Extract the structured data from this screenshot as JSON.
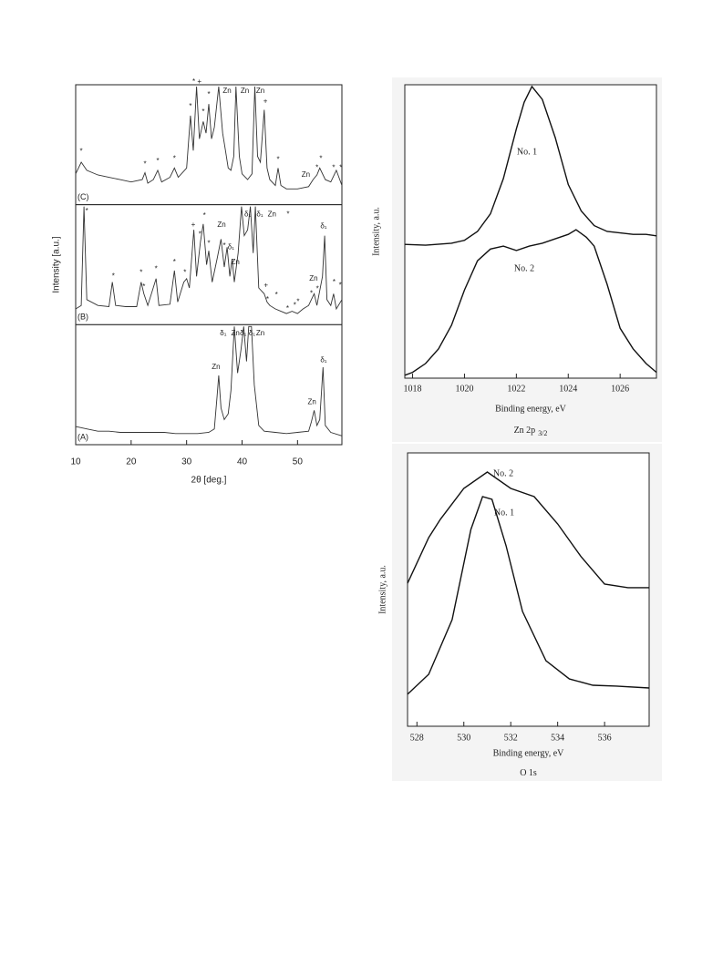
{
  "chart_data": [
    {
      "type": "stacked-line",
      "xlabel": "2θ [deg.]",
      "ylabel": "Intensity [a.u.]",
      "xlim": [
        10,
        58
      ],
      "xticks": [
        10,
        20,
        30,
        40,
        50
      ],
      "color": "#333333",
      "panels": [
        {
          "label": "(C)",
          "ylim": [
            0,
            100
          ],
          "x": [
            10,
            11,
            12,
            14,
            16,
            18,
            20,
            22,
            22.5,
            23,
            24,
            24.8,
            25.5,
            27,
            27.8,
            28.5,
            30,
            30.7,
            31.2,
            31.8,
            32.3,
            33,
            33.5,
            34,
            34.5,
            35,
            35.8,
            36.5,
            37,
            37.5,
            38,
            38.5,
            38.9,
            39.5,
            40,
            41,
            41.8,
            42.3,
            42.8,
            43.3,
            44,
            44.5,
            45,
            46,
            46.5,
            47,
            48,
            50,
            52,
            52.8,
            53.5,
            54,
            55,
            56,
            57,
            58
          ],
          "values": [
            25,
            35,
            28,
            24,
            22,
            20,
            18,
            20,
            26,
            17,
            20,
            28,
            18,
            22,
            30,
            22,
            30,
            75,
            45,
            100,
            55,
            70,
            60,
            85,
            55,
            65,
            100,
            60,
            45,
            30,
            28,
            40,
            100,
            40,
            25,
            20,
            25,
            100,
            40,
            35,
            80,
            30,
            20,
            15,
            30,
            15,
            12,
            12,
            14,
            20,
            24,
            30,
            20,
            18,
            28,
            15
          ],
          "annotations": [
            {
              "text": "*",
              "x": 11,
              "y": 44
            },
            {
              "text": "*",
              "x": 22.5,
              "y": 33
            },
            {
              "text": "*",
              "x": 24.8,
              "y": 36
            },
            {
              "text": "*",
              "x": 27.8,
              "y": 38
            },
            {
              "text": "*",
              "x": 30.7,
              "y": 83
            },
            {
              "text": "*",
              "x": 31.3,
              "y": 104
            },
            {
              "text": "+",
              "x": 32.3,
              "y": 104
            },
            {
              "text": "*",
              "x": 33,
              "y": 78
            },
            {
              "text": "*",
              "x": 34,
              "y": 93
            },
            {
              "text": "Zn",
              "x": 37.3,
              "y": 96
            },
            {
              "text": "Zn",
              "x": 40.5,
              "y": 96
            },
            {
              "text": "Zn",
              "x": 43.3,
              "y": 96
            },
            {
              "text": "+",
              "x": 44.2,
              "y": 87
            },
            {
              "text": "*",
              "x": 46.5,
              "y": 37
            },
            {
              "text": "Zn",
              "x": 51.5,
              "y": 24
            },
            {
              "text": "*",
              "x": 53.5,
              "y": 30
            },
            {
              "text": "*",
              "x": 54.2,
              "y": 38
            },
            {
              "text": "*",
              "x": 56.5,
              "y": 30
            },
            {
              "text": "*",
              "x": 57.8,
              "y": 30
            }
          ]
        },
        {
          "label": "(B)",
          "ylim": [
            0,
            100
          ],
          "x": [
            10,
            11,
            11.5,
            12,
            14,
            16,
            16.6,
            17.2,
            19,
            21,
            21.8,
            22.3,
            23,
            24.5,
            25,
            27,
            27.8,
            28.4,
            29.5,
            30,
            30.5,
            31.3,
            31.8,
            32.5,
            33,
            33.6,
            34,
            34.6,
            35.5,
            36.2,
            36.8,
            37.3,
            37.8,
            38.2,
            38.6,
            39.3,
            39.9,
            40.4,
            41,
            41.5,
            42,
            42.4,
            43,
            44,
            44.5,
            45,
            46,
            47,
            48,
            49,
            50,
            51,
            52,
            52.5,
            53,
            53.5,
            54.5,
            54.9,
            55.3,
            56,
            56.5,
            57,
            58
          ],
          "values": [
            12,
            15,
            100,
            20,
            15,
            14,
            35,
            15,
            14,
            14,
            35,
            25,
            15,
            38,
            15,
            16,
            45,
            18,
            35,
            38,
            30,
            80,
            40,
            70,
            85,
            50,
            62,
            35,
            55,
            72,
            48,
            65,
            40,
            55,
            35,
            60,
            100,
            75,
            80,
            100,
            60,
            100,
            30,
            25,
            18,
            15,
            12,
            10,
            8,
            10,
            8,
            12,
            15,
            20,
            25,
            15,
            40,
            75,
            20,
            15,
            25,
            12,
            20
          ],
          "annotations": [
            {
              "text": "*",
              "x": 12,
              "y": 96
            },
            {
              "text": "*",
              "x": 16.8,
              "y": 40
            },
            {
              "text": "*",
              "x": 21.8,
              "y": 43
            },
            {
              "text": "*",
              "x": 22.3,
              "y": 31
            },
            {
              "text": "*",
              "x": 24.5,
              "y": 46
            },
            {
              "text": "*",
              "x": 27.8,
              "y": 52
            },
            {
              "text": "*",
              "x": 29.7,
              "y": 43
            },
            {
              "text": "+",
              "x": 31.2,
              "y": 84
            },
            {
              "text": "*",
              "x": 32.4,
              "y": 76
            },
            {
              "text": "*",
              "x": 33.2,
              "y": 92
            },
            {
              "text": "*",
              "x": 34,
              "y": 68
            },
            {
              "text": "Zn",
              "x": 36.3,
              "y": 84
            },
            {
              "text": "*",
              "x": 36.8,
              "y": 66
            },
            {
              "text": "δ₁",
              "x": 38,
              "y": 65
            },
            {
              "text": "Zn",
              "x": 38.8,
              "y": 52
            },
            {
              "text": "δ₁",
              "x": 41,
              "y": 93
            },
            {
              "text": "δ₁",
              "x": 43.2,
              "y": 93
            },
            {
              "text": "Zn",
              "x": 45.4,
              "y": 93
            },
            {
              "text": "*",
              "x": 48.3,
              "y": 93
            },
            {
              "text": "+",
              "x": 44.3,
              "y": 32
            },
            {
              "text": "*",
              "x": 44.6,
              "y": 20
            },
            {
              "text": "*",
              "x": 46.2,
              "y": 24
            },
            {
              "text": "*",
              "x": 48.2,
              "y": 12
            },
            {
              "text": "*",
              "x": 49.5,
              "y": 15
            },
            {
              "text": "*",
              "x": 50.1,
              "y": 18
            },
            {
              "text": "*",
              "x": 52.5,
              "y": 25
            },
            {
              "text": "Zn",
              "x": 52.9,
              "y": 38
            },
            {
              "text": "*",
              "x": 53.6,
              "y": 29
            },
            {
              "text": "δ₁",
              "x": 54.7,
              "y": 83
            },
            {
              "text": "*",
              "x": 56.6,
              "y": 35
            },
            {
              "text": "*",
              "x": 57.7,
              "y": 32
            }
          ]
        },
        {
          "label": "(A)",
          "ylim": [
            0,
            100
          ],
          "x": [
            10,
            12,
            14,
            16,
            18,
            20,
            22,
            24,
            26,
            28,
            30,
            32,
            34,
            35,
            35.5,
            35.8,
            36.2,
            36.8,
            37.5,
            38,
            38.6,
            39.2,
            39.8,
            40.3,
            40.8,
            41.2,
            41.7,
            42.2,
            43,
            44,
            46,
            48,
            50,
            52,
            52.5,
            53,
            53.5,
            54,
            54.6,
            55,
            56,
            58
          ],
          "values": [
            14,
            12,
            10,
            10,
            9,
            9,
            9,
            9,
            9,
            8,
            8,
            8,
            9,
            12,
            40,
            58,
            30,
            20,
            25,
            45,
            100,
            60,
            80,
            100,
            70,
            100,
            100,
            50,
            15,
            10,
            9,
            8,
            9,
            10,
            18,
            28,
            15,
            20,
            65,
            15,
            9,
            6
          ],
          "annotations": [
            {
              "text": "δ₁",
              "x": 36.6,
              "y": 94
            },
            {
              "text": "Zn",
              "x": 38.8,
              "y": 94
            },
            {
              "text": "Zn",
              "x": 35.3,
              "y": 65
            },
            {
              "text": "δ₁",
              "x": 40.2,
              "y": 94
            },
            {
              "text": "δ₁",
              "x": 41.8,
              "y": 94
            },
            {
              "text": "Zn",
              "x": 43.3,
              "y": 94
            },
            {
              "text": "Zn",
              "x": 52.6,
              "y": 35
            },
            {
              "text": "δ₁",
              "x": 54.7,
              "y": 71
            }
          ]
        }
      ]
    },
    {
      "type": "line",
      "title": "Zn 2p",
      "title_sub": "3/2",
      "xlabel": "Binding energy, eV",
      "ylabel": "Intensity, a.u.",
      "xlim": [
        1017.7,
        1027.4
      ],
      "xticks": [
        1018,
        1020,
        1022,
        1024,
        1026
      ],
      "ylim": [
        0,
        100
      ],
      "series": [
        {
          "name": "No. 1",
          "color": "#111111",
          "x": [
            1017.7,
            1018.5,
            1019.5,
            1020,
            1020.5,
            1021,
            1021.5,
            1022,
            1022.3,
            1022.6,
            1023,
            1023.5,
            1024,
            1024.5,
            1025,
            1025.5,
            1026,
            1026.5,
            1027,
            1027.4
          ],
          "values": [
            45.6,
            45.3,
            46,
            47,
            50,
            56,
            68,
            85,
            94,
            99.4,
            95,
            82,
            66,
            57,
            52,
            50,
            49.5,
            49,
            49,
            48.5
          ]
        },
        {
          "name": "No. 2",
          "color": "#111111",
          "x": [
            1017.7,
            1018,
            1018.5,
            1019,
            1019.5,
            1020,
            1020.5,
            1021,
            1021.5,
            1022,
            1022.5,
            1023,
            1023.5,
            1024,
            1024.3,
            1024.7,
            1025,
            1025.5,
            1026,
            1026.5,
            1027,
            1027.4
          ],
          "values": [
            1,
            2,
            5,
            10,
            18,
            30,
            40,
            44,
            45,
            43.5,
            45,
            46,
            47.5,
            49,
            50.6,
            48,
            45,
            32,
            17,
            10,
            5,
            2
          ]
        }
      ]
    },
    {
      "type": "line",
      "title": "O 1s",
      "xlabel": "Binding energy, eV",
      "ylabel": "Intensity, a.u.",
      "xlim": [
        527.6,
        537.9
      ],
      "xticks": [
        528,
        530,
        532,
        534,
        536
      ],
      "ylim": [
        0,
        100
      ],
      "series": [
        {
          "name": "No. 1",
          "color": "#111111",
          "x": [
            527.6,
            528.5,
            529.5,
            530.3,
            530.8,
            531.2,
            531.8,
            532.5,
            533.5,
            534.5,
            535.5,
            536.5,
            537.9
          ],
          "values": [
            11.7,
            19,
            39,
            72,
            84,
            83,
            66,
            42,
            24,
            17.3,
            15,
            14.7,
            14
          ]
        },
        {
          "name": "No. 2",
          "color": "#111111",
          "x": [
            527.6,
            528.5,
            529,
            530,
            531,
            532,
            533,
            534,
            535,
            536,
            537,
            537.9
          ],
          "values": [
            52.3,
            69,
            75.7,
            87,
            93,
            87,
            84,
            74,
            62,
            52,
            50.7,
            50.7
          ]
        }
      ]
    }
  ]
}
